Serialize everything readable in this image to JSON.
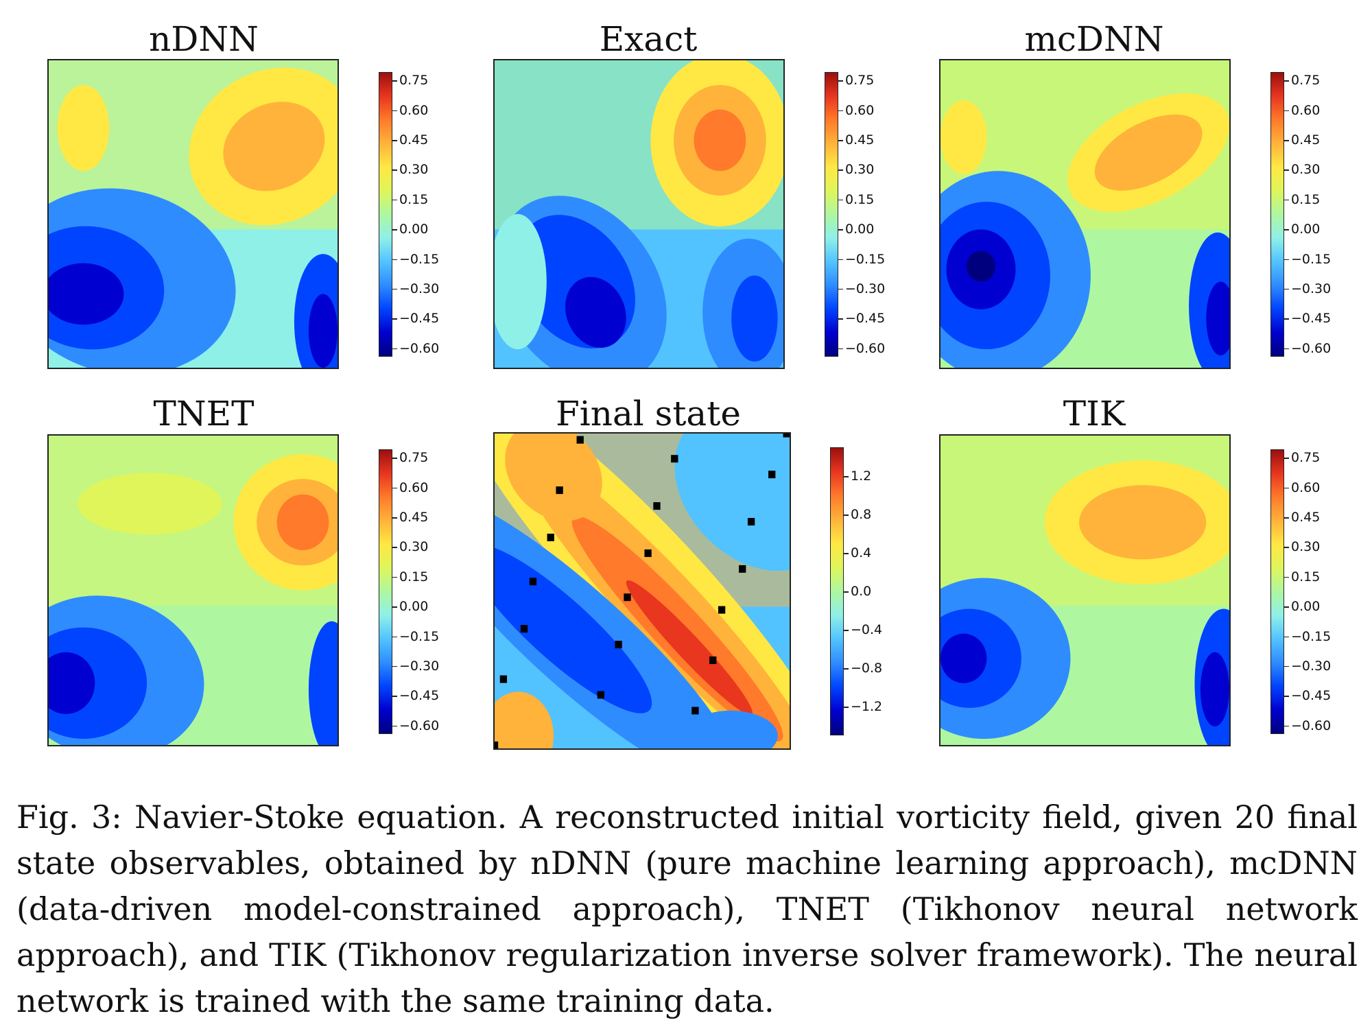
{
  "figure": {
    "caption": "Fig. 3: Navier-Stoke equation. A reconstructed initial vorticity field, given 20 final state observables, obtained by nDNN (pure machine learning approach), mcDNN (data-driven model-constrained approach), TNET (Tikhonov neural network approach), and TIK (Tikhonov regularization inverse solver framework). The neural network is trained with the same training data.",
    "panels": [
      {
        "title": "nDNN"
      },
      {
        "title": "Exact"
      },
      {
        "title": "mcDNN"
      },
      {
        "title": "TNET"
      },
      {
        "title": "Final state"
      },
      {
        "title": "TIK"
      }
    ]
  },
  "chart_data": [
    {
      "type": "heatmap",
      "title": "nDNN",
      "colormap": "jet",
      "colorbar_ticks": [
        "0.75",
        "0.60",
        "0.45",
        "0.30",
        "0.15",
        "0.00",
        "−0.15",
        "−0.30",
        "−0.45",
        "−0.60"
      ],
      "zlim": [
        -0.6,
        0.8
      ]
    },
    {
      "type": "heatmap",
      "title": "Exact",
      "colormap": "jet",
      "colorbar_ticks": [
        "0.75",
        "0.60",
        "0.45",
        "0.30",
        "0.15",
        "0.00",
        "−0.15",
        "−0.30",
        "−0.45",
        "−0.60"
      ],
      "zlim": [
        -0.6,
        0.8
      ]
    },
    {
      "type": "heatmap",
      "title": "mcDNN",
      "colormap": "jet",
      "colorbar_ticks": [
        "0.75",
        "0.60",
        "0.45",
        "0.30",
        "0.15",
        "0.00",
        "−0.15",
        "−0.30",
        "−0.45",
        "−0.60"
      ],
      "zlim": [
        -0.6,
        0.8
      ]
    },
    {
      "type": "heatmap",
      "title": "TNET",
      "colormap": "jet",
      "colorbar_ticks": [
        "0.75",
        "0.60",
        "0.45",
        "0.30",
        "0.15",
        "0.00",
        "−0.15",
        "−0.30",
        "−0.45",
        "−0.60"
      ],
      "zlim": [
        -0.6,
        0.8
      ]
    },
    {
      "type": "heatmap",
      "title": "Final state",
      "colormap": "jet",
      "colorbar_ticks": [
        "1.2",
        "0.8",
        "0.4",
        "0.0",
        "−0.4",
        "−0.8",
        "−1.2"
      ],
      "zlim": [
        -1.5,
        1.5
      ],
      "observations_count": 20
    },
    {
      "type": "heatmap",
      "title": "TIK",
      "colormap": "jet",
      "colorbar_ticks": [
        "0.75",
        "0.60",
        "0.45",
        "0.30",
        "0.15",
        "0.00",
        "−0.15",
        "−0.30",
        "−0.45",
        "−0.60"
      ],
      "zlim": [
        -0.6,
        0.8
      ]
    }
  ]
}
